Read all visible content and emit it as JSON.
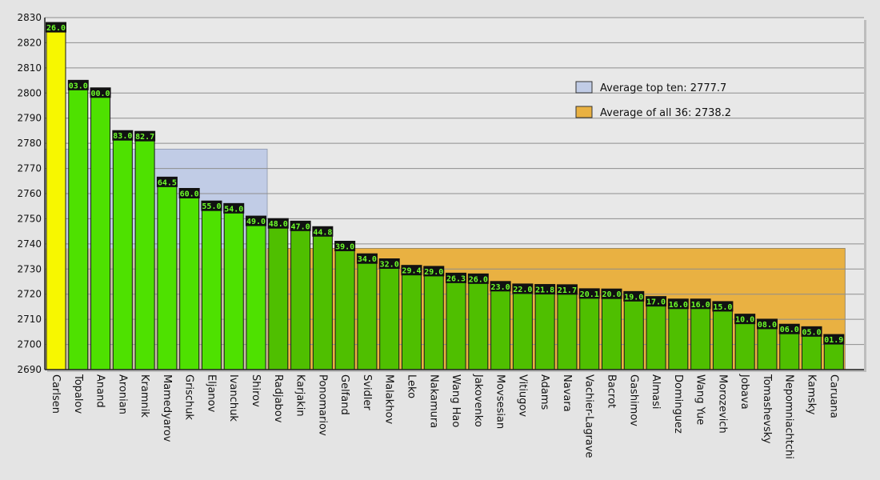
{
  "chart_data": {
    "type": "bar",
    "title": "",
    "xlabel": "",
    "ylabel": "",
    "ylim": [
      2690,
      2830
    ],
    "yticks": [
      2690,
      2700,
      2710,
      2720,
      2730,
      2740,
      2750,
      2760,
      2770,
      2780,
      2790,
      2800,
      2810,
      2820,
      2830
    ],
    "grid": true,
    "legend_position": "top-right",
    "categories": [
      "Carlsen",
      "Topalov",
      "Anand",
      "Aronian",
      "Kramnik",
      "Mamedyarov",
      "Grischuk",
      "Eljanov",
      "Ivanchuk",
      "Shirov",
      "Radjabov",
      "Karjakin",
      "Ponomariov",
      "Gelfand",
      "Svidler",
      "Malakhov",
      "Leko",
      "Nakamura",
      "Wang Hao",
      "Jakovenko",
      "Movsesian",
      "Vitiugov",
      "Adams",
      "Navara",
      "Vachier-Lagrave",
      "Bacrot",
      "Gashimov",
      "Almasi",
      "Dominguez",
      "Wang Yue",
      "Morozevich",
      "Jobava",
      "Tomashevsky",
      "Nepomniachtchi",
      "Kamsky",
      "Caruana"
    ],
    "values": [
      2826.0,
      2803.0,
      2800.0,
      2783.0,
      2782.7,
      2764.5,
      2760.0,
      2755.0,
      2754.0,
      2749.0,
      2748.0,
      2747.0,
      2744.8,
      2739.0,
      2734.0,
      2732.0,
      2729.4,
      2729.0,
      2726.3,
      2726.0,
      2723.0,
      2722.0,
      2721.8,
      2721.7,
      2720.1,
      2720.0,
      2719.0,
      2717.0,
      2716.0,
      2716.0,
      2715.0,
      2710.0,
      2708.0,
      2706.0,
      2705.0,
      2701.9
    ],
    "value_labels": [
      "26.0",
      "03.0",
      "00.0",
      "83.0",
      "82.7",
      "64.5",
      "60.0",
      "55.0",
      "54.0",
      "49.0",
      "48.0",
      "47.0",
      "44.8",
      "39.0",
      "34.0",
      "32.0",
      "29.4",
      "29.0",
      "26.3",
      "26.0",
      "23.0",
      "22.0",
      "21.8",
      "21.7",
      "20.1",
      "20.0",
      "19.0",
      "17.0",
      "16.0",
      "16.0",
      "15.0",
      "10.0",
      "08.0",
      "06.0",
      "05.0",
      "01.9"
    ],
    "averages": [
      {
        "label": "Average top ten: 2777.7",
        "value": 2777.7,
        "count": 10,
        "color": "#c1cce6"
      },
      {
        "label": "Average of all 36: 2738.2",
        "value": 2738.2,
        "count": 36,
        "color": "#e9b142"
      }
    ],
    "colors": {
      "first": "#f7f700",
      "top_ten": "#4ee100",
      "rest": "#4fbf00",
      "overlap": "#c7bda5",
      "label_bg": "#111111",
      "label_text": "#6dfd2a"
    }
  }
}
